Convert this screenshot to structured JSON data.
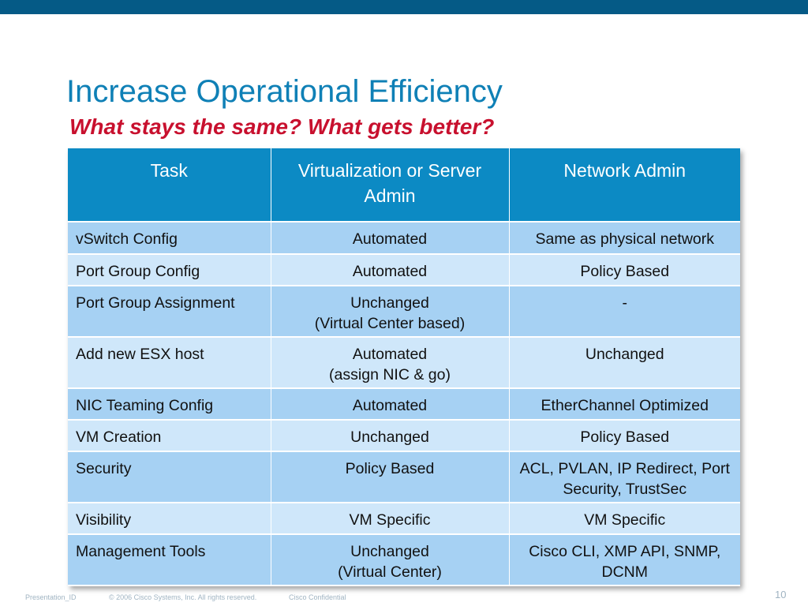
{
  "slide": {
    "title": "Increase Operational Efficiency",
    "subtitle": "What stays the same?  What gets better?",
    "colors": {
      "top_bar": "#055a86",
      "title": "#0f80b6",
      "subtitle": "#c8102e",
      "header": "#0c8ac4",
      "row_dark": "#a6d1f3",
      "row_light": "#cfe7fa"
    }
  },
  "table": {
    "headers": [
      "Task",
      "Virtualization or Server Admin",
      "Network Admin"
    ],
    "rows": [
      [
        "vSwitch Config",
        "Automated",
        "Same as physical network"
      ],
      [
        "Port Group Config",
        "Automated",
        "Policy Based"
      ],
      [
        "Port Group Assignment",
        "Unchanged\n(Virtual Center based)",
        "-"
      ],
      [
        "Add new ESX host",
        "Automated\n(assign NIC & go)",
        "Unchanged"
      ],
      [
        "NIC Teaming Config",
        "Automated",
        "EtherChannel Optimized"
      ],
      [
        "VM Creation",
        "Unchanged",
        "Policy Based"
      ],
      [
        "Security",
        "Policy Based",
        "ACL, PVLAN, IP Redirect, Port Security, TrustSec"
      ],
      [
        "Visibility",
        "VM Specific",
        "VM Specific"
      ],
      [
        "Management Tools",
        "Unchanged\n(Virtual Center)",
        "Cisco CLI, XMP API, SNMP, DCNM"
      ]
    ]
  },
  "footer": {
    "presentation_id": "Presentation_ID",
    "copyright": "© 2006 Cisco Systems, Inc. All rights reserved.",
    "confidential": "Cisco Confidential",
    "page_number": "10"
  }
}
